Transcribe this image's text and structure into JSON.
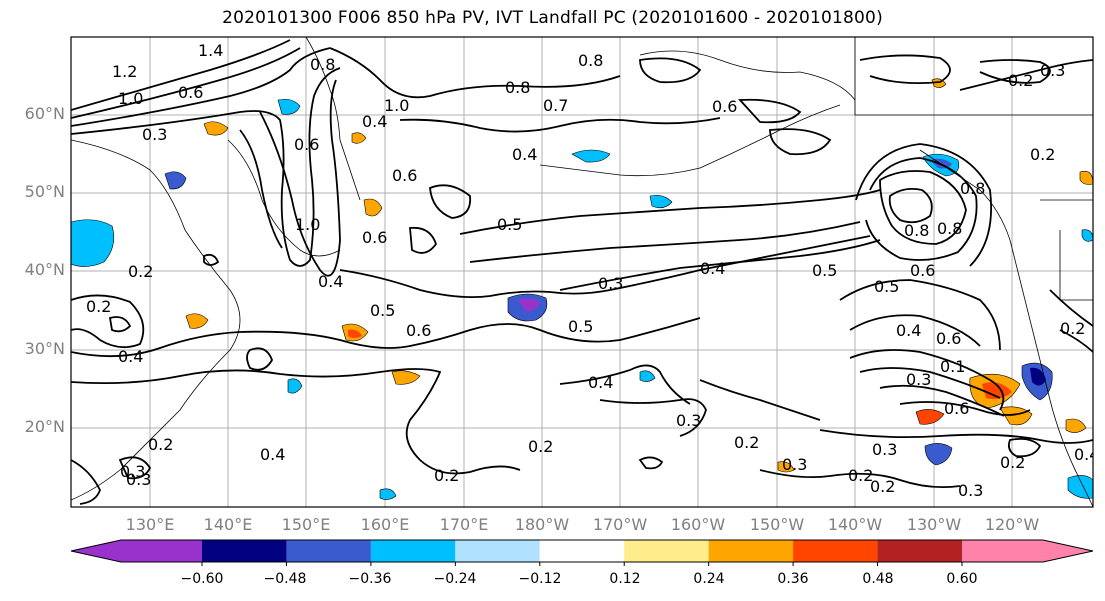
{
  "title": "2020101300 F006 850 hPa PV, IVT Landfall PC (2020101600 - 2020101800)",
  "lat_labels": [
    "60°N",
    "50°N",
    "40°N",
    "30°N",
    "20°N"
  ],
  "lon_labels": [
    "130°E",
    "140°E",
    "150°E",
    "160°E",
    "170°E",
    "180°W",
    "170°W",
    "160°W",
    "150°W",
    "140°W",
    "130°W",
    "120°W"
  ],
  "colorbar": {
    "colors": [
      "#9932cc",
      "#000080",
      "#3a5bcd",
      "#00bfff",
      "#b0e2ff",
      "#ffffff",
      "#ffec8b",
      "#ffa500",
      "#ff4500",
      "#b22222",
      "#ff82ab"
    ],
    "extend_low": "#9932cc",
    "extend_high": "#ff82ab",
    "tick_labels": [
      "−0.60",
      "−0.48",
      "−0.36",
      "−0.24",
      "−0.12",
      "0.12",
      "0.24",
      "0.36",
      "0.48",
      "0.60"
    ]
  },
  "contour_labels": [
    "1.4",
    "1.2",
    "1.0",
    "0.3",
    "0.6",
    "0.8",
    "0.8",
    "0.8",
    "0.7",
    "0.6",
    "0.4",
    "1.0",
    "0.4",
    "0.6",
    "0.5",
    "0.6",
    "1.0",
    "0.6",
    "0.4",
    "0.2",
    "0.5",
    "0.6",
    "0.3",
    "0.4",
    "0.5",
    "0.5",
    "0.4",
    "0.3",
    "0.8",
    "0.8",
    "0.8",
    "0.6",
    "0.5",
    "0.6",
    "0.4",
    "0.3",
    "0.1",
    "0.6",
    "0.3",
    "0.2",
    "0.2",
    "0.3",
    "0.4",
    "0.2",
    "0.3",
    "0.4",
    "0.2",
    "0.2",
    "0.3",
    "0.2",
    "0.2",
    "0.3",
    "0.2",
    "0.3",
    "0.2",
    "0.2",
    "0.4",
    "0.2"
  ]
}
